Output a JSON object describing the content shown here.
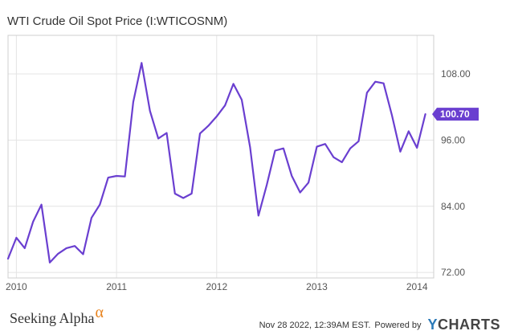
{
  "title": "WTI Crude Oil Spot Price (I:WTICOSNM)",
  "chart_data": {
    "type": "line",
    "title": "WTI Crude Oil Spot Price (I:WTICOSNM)",
    "xlabel": "",
    "ylabel": "",
    "x_ticks": [
      "2010",
      "2011",
      "2012",
      "2013",
      "2014"
    ],
    "y_ticks": [
      "72.00",
      "84.00",
      "96.00",
      "108.00"
    ],
    "ylim": [
      71,
      115
    ],
    "xlim": [
      "2009-12",
      "2014-03"
    ],
    "y_axis_side": "right",
    "grid": true,
    "series": [
      {
        "color": "#6a3fd0",
        "x": [
          "2009-12",
          "2010-01",
          "2010-02",
          "2010-03",
          "2010-04",
          "2010-05",
          "2010-06",
          "2010-07",
          "2010-08",
          "2010-09",
          "2010-10",
          "2010-11",
          "2010-12",
          "2011-01",
          "2011-02",
          "2011-03",
          "2011-04",
          "2011-05",
          "2011-06",
          "2011-07",
          "2011-08",
          "2011-09",
          "2011-10",
          "2011-11",
          "2011-12",
          "2012-01",
          "2012-02",
          "2012-03",
          "2012-04",
          "2012-05",
          "2012-06",
          "2012-07",
          "2012-08",
          "2012-09",
          "2012-10",
          "2012-11",
          "2012-12",
          "2013-01",
          "2013-02",
          "2013-03",
          "2013-04",
          "2013-05",
          "2013-06",
          "2013-07",
          "2013-08",
          "2013-09",
          "2013-10",
          "2013-11",
          "2013-12",
          "2014-01",
          "2014-02"
        ],
        "values": [
          74.5,
          78.3,
          76.4,
          81.2,
          84.3,
          73.8,
          75.4,
          76.4,
          76.8,
          75.3,
          81.9,
          84.3,
          89.2,
          89.5,
          89.4,
          102.9,
          110.0,
          101.3,
          96.3,
          97.3,
          86.3,
          85.5,
          86.3,
          97.2,
          98.6,
          100.3,
          102.3,
          106.2,
          103.3,
          94.7,
          82.3,
          87.9,
          94.1,
          94.5,
          89.5,
          86.5,
          88.3,
          94.8,
          95.3,
          92.9,
          92.0,
          94.5,
          95.8,
          104.6,
          106.6,
          106.3,
          100.5,
          93.9,
          97.6,
          94.6,
          100.7
        ]
      }
    ],
    "last_value_label": "100.70"
  },
  "footer": {
    "brand": "Seeking Alpha",
    "brand_symbol": "α",
    "timestamp": "Nov 28 2022, 12:39AM EST.",
    "powered_by": "Powered by",
    "ycharts_y": "Y",
    "ycharts_rest": "CHARTS"
  }
}
